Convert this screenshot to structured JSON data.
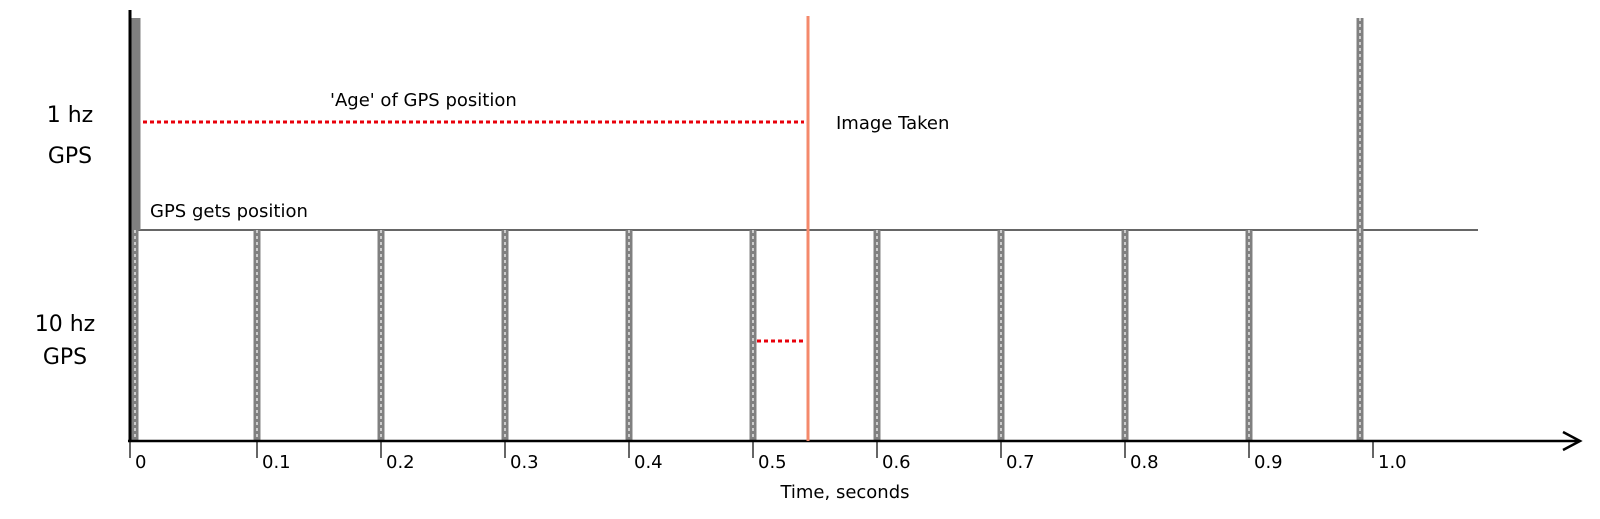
{
  "rows": [
    {
      "label_line1": "1 hz",
      "label_line2": "GPS"
    },
    {
      "label_line1": "10 hz",
      "label_line2": "GPS"
    }
  ],
  "annotations": {
    "gps_fix": "GPS gets position",
    "age": "'Age' of GPS position",
    "image_taken": "Image Taken"
  },
  "x_axis": {
    "label": "Time, seconds",
    "ticks": [
      "0",
      "0.1",
      "0.2",
      "0.3",
      "0.4",
      "0.5",
      "0.6",
      "0.7",
      "0.8",
      "0.9",
      "1.0"
    ]
  },
  "events": {
    "gps_1hz_fixes": [
      0,
      1.0
    ],
    "gps_10hz_fixes": [
      0,
      0.1,
      0.2,
      0.3,
      0.4,
      0.5,
      0.6,
      0.7,
      0.8,
      0.9,
      1.0
    ],
    "image_taken_time": 0.55,
    "age_1hz": {
      "from": 0,
      "to": 0.55
    },
    "age_10hz": {
      "from": 0.5,
      "to": 0.55
    }
  },
  "colors": {
    "axis": "#000000",
    "fix_marker": "#808080",
    "fix_marker_dash": "#ffffff",
    "image_line": "#f4896b",
    "age_line": "#e8000b",
    "separator": "#333333"
  }
}
